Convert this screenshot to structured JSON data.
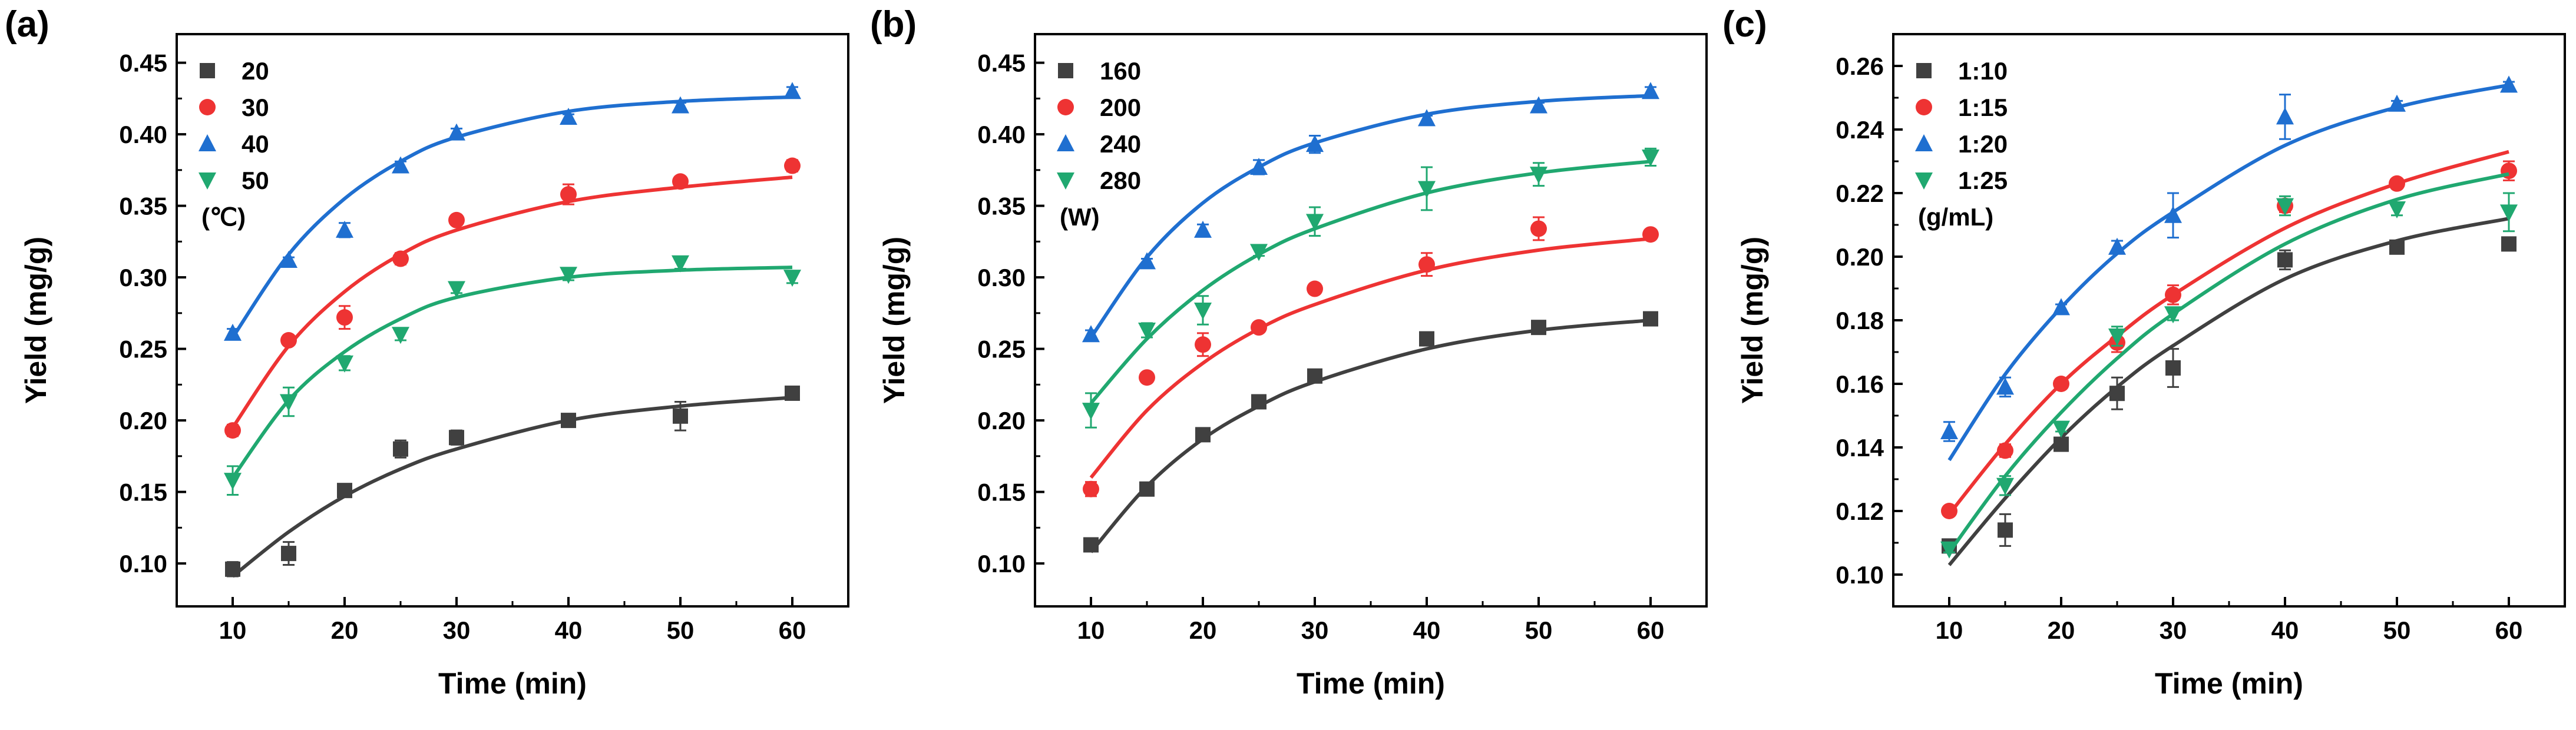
{
  "chart_data": [
    {
      "panel_label": "(a)",
      "type": "scatter",
      "xlabel": "Time (min)",
      "ylabel": "Yield (mg/g)",
      "xlim": [
        5,
        65
      ],
      "ylim": [
        0.07,
        0.47
      ],
      "x_ticks": [
        10,
        20,
        30,
        40,
        50,
        60
      ],
      "y_ticks": [
        0.1,
        0.15,
        0.2,
        0.25,
        0.3,
        0.35,
        0.4,
        0.45
      ],
      "y_decimals": 2,
      "legend_unit": "(℃)",
      "x": [
        10,
        15,
        20,
        25,
        30,
        40,
        50,
        60
      ],
      "series": [
        {
          "name": "20",
          "color": "#404040",
          "marker": "square",
          "values": [
            0.096,
            0.107,
            0.151,
            0.18,
            0.188,
            0.2,
            0.203,
            0.219
          ],
          "errors": [
            0.005,
            0.008,
            0.003,
            0.006,
            0.005,
            0.002,
            0.01,
            0.004
          ],
          "fit": [
            0.091,
            0.122,
            0.147,
            0.166,
            0.18,
            0.2,
            0.21,
            0.216
          ]
        },
        {
          "name": "30",
          "color": "#ee3333",
          "marker": "circle",
          "values": [
            0.193,
            0.256,
            0.272,
            0.313,
            0.34,
            0.358,
            0.367,
            0.378
          ],
          "errors": [
            0.004,
            0.003,
            0.008,
            0.004,
            0.002,
            0.007,
            0.002,
            0.004
          ],
          "fit": [
            0.195,
            0.252,
            0.29,
            0.316,
            0.333,
            0.353,
            0.363,
            0.37
          ]
        },
        {
          "name": "40",
          "color": "#1f6fd0",
          "marker": "triangle-up",
          "values": [
            0.261,
            0.312,
            0.333,
            0.378,
            0.401,
            0.412,
            0.42,
            0.43
          ],
          "errors": [
            0.003,
            0.002,
            0.005,
            0.003,
            0.003,
            0.002,
            0.002,
            0.003
          ],
          "fit": [
            0.258,
            0.316,
            0.355,
            0.381,
            0.398,
            0.416,
            0.423,
            0.426
          ]
        },
        {
          "name": "50",
          "color": "#20a870",
          "marker": "triangle-down",
          "values": [
            0.158,
            0.213,
            0.24,
            0.26,
            0.292,
            0.302,
            0.31,
            0.3
          ],
          "errors": [
            0.01,
            0.01,
            0.005,
            0.004,
            0.003,
            0.004,
            0.004,
            0.004
          ],
          "fit": [
            0.16,
            0.214,
            0.248,
            0.271,
            0.286,
            0.3,
            0.305,
            0.307
          ]
        }
      ]
    },
    {
      "panel_label": "(b)",
      "type": "scatter",
      "xlabel": "Time (min)",
      "ylabel": "Yield (mg/g)",
      "xlim": [
        5,
        65
      ],
      "ylim": [
        0.07,
        0.47
      ],
      "x_ticks": [
        10,
        20,
        30,
        40,
        50,
        60
      ],
      "y_ticks": [
        0.1,
        0.15,
        0.2,
        0.25,
        0.3,
        0.35,
        0.4,
        0.45
      ],
      "y_decimals": 2,
      "legend_unit": "(W)",
      "x": [
        10,
        15,
        20,
        25,
        30,
        40,
        50,
        60
      ],
      "series": [
        {
          "name": "160",
          "color": "#404040",
          "marker": "square",
          "values": [
            0.113,
            0.152,
            0.19,
            0.213,
            0.231,
            0.257,
            0.265,
            0.271
          ],
          "errors": [
            0.004,
            0.003,
            0.004,
            0.002,
            0.002,
            0.002,
            0.004,
            0.003
          ],
          "fit": [
            0.108,
            0.154,
            0.187,
            0.21,
            0.227,
            0.25,
            0.263,
            0.27
          ]
        },
        {
          "name": "200",
          "color": "#ee3333",
          "marker": "circle",
          "values": [
            0.152,
            0.23,
            0.253,
            0.265,
            0.292,
            0.309,
            0.334,
            0.33
          ],
          "errors": [
            0.005,
            0.003,
            0.008,
            0.003,
            0.003,
            0.008,
            0.008,
            0.003
          ],
          "fit": [
            0.16,
            0.207,
            0.24,
            0.264,
            0.281,
            0.305,
            0.319,
            0.327
          ]
        },
        {
          "name": "240",
          "color": "#1f6fd0",
          "marker": "triangle-up",
          "values": [
            0.26,
            0.311,
            0.333,
            0.377,
            0.393,
            0.411,
            0.42,
            0.43
          ],
          "errors": [
            0.003,
            0.002,
            0.004,
            0.005,
            0.006,
            0.002,
            0.002,
            0.003
          ],
          "fit": [
            0.258,
            0.314,
            0.352,
            0.377,
            0.394,
            0.414,
            0.423,
            0.427
          ]
        },
        {
          "name": "280",
          "color": "#20a870",
          "marker": "triangle-down",
          "values": [
            0.207,
            0.263,
            0.277,
            0.318,
            0.339,
            0.362,
            0.372,
            0.384
          ],
          "errors": [
            0.012,
            0.005,
            0.01,
            0.003,
            0.01,
            0.015,
            0.008,
            0.006
          ],
          "fit": [
            0.212,
            0.257,
            0.291,
            0.316,
            0.334,
            0.359,
            0.373,
            0.381
          ]
        }
      ]
    },
    {
      "panel_label": "(c)",
      "type": "scatter",
      "xlabel": "Time (min)",
      "ylabel": "Yield (mg/g)",
      "xlim": [
        5,
        65
      ],
      "ylim": [
        0.09,
        0.27
      ],
      "x_ticks": [
        10,
        20,
        30,
        40,
        50,
        60
      ],
      "y_ticks": [
        0.1,
        0.12,
        0.14,
        0.16,
        0.18,
        0.2,
        0.22,
        0.24,
        0.26
      ],
      "y_decimals": 2,
      "legend_unit": "(g/mL)",
      "x": [
        10,
        15,
        20,
        25,
        30,
        40,
        50,
        60
      ],
      "series": [
        {
          "name": "1:10",
          "color": "#404040",
          "marker": "square",
          "values": [
            0.109,
            0.114,
            0.141,
            0.157,
            0.165,
            0.199,
            0.203,
            0.204
          ],
          "errors": [
            0.002,
            0.005,
            0.002,
            0.005,
            0.006,
            0.003,
            0.001,
            0.002
          ],
          "fit": [
            0.103,
            0.124,
            0.143,
            0.159,
            0.172,
            0.193,
            0.205,
            0.212
          ]
        },
        {
          "name": "1:15",
          "color": "#ee3333",
          "marker": "circle",
          "values": [
            0.12,
            0.139,
            0.16,
            0.173,
            0.188,
            0.216,
            0.223,
            0.227
          ],
          "errors": [
            0.001,
            0.002,
            0.001,
            0.003,
            0.003,
            0.002,
            0.001,
            0.003
          ],
          "fit": [
            0.119,
            0.141,
            0.16,
            0.175,
            0.188,
            0.209,
            0.223,
            0.233
          ]
        },
        {
          "name": "1:20",
          "color": "#1f6fd0",
          "marker": "triangle-up",
          "values": [
            0.145,
            0.159,
            0.184,
            0.203,
            0.213,
            0.244,
            0.248,
            0.254
          ],
          "errors": [
            0.003,
            0.003,
            0.001,
            0.002,
            0.007,
            0.007,
            0.001,
            0.001
          ],
          "fit": [
            0.136,
            0.163,
            0.184,
            0.201,
            0.214,
            0.235,
            0.247,
            0.254
          ]
        },
        {
          "name": "1:25",
          "color": "#20a870",
          "marker": "triangle-down",
          "values": [
            0.108,
            0.128,
            0.146,
            0.175,
            0.182,
            0.216,
            0.215,
            0.214
          ],
          "errors": [
            0.001,
            0.003,
            0.001,
            0.003,
            0.002,
            0.003,
            0.002,
            0.006
          ],
          "fit": [
            0.107,
            0.131,
            0.151,
            0.168,
            0.182,
            0.204,
            0.218,
            0.226
          ]
        }
      ]
    }
  ]
}
